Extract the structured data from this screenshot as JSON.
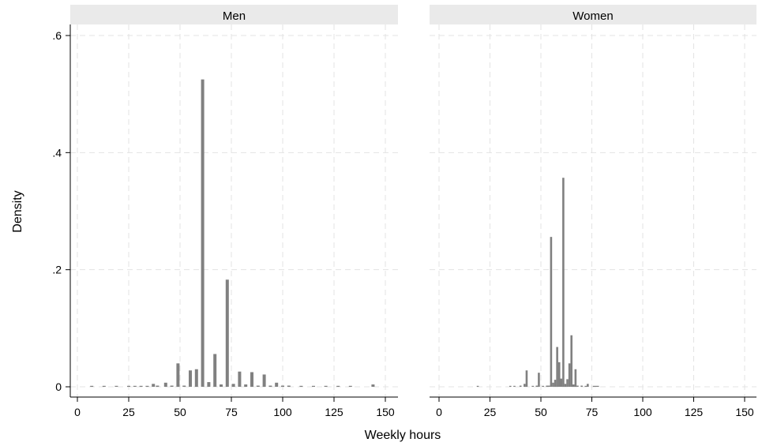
{
  "chart_data": {
    "type": "bar",
    "xlabel": "Weekly hours",
    "ylabel": "Density",
    "xlim": [
      0,
      150
    ],
    "ylim": [
      0,
      0.6
    ],
    "x_ticks": [
      0,
      25,
      50,
      75,
      100,
      125,
      150
    ],
    "x_tick_labels": [
      "0",
      "25",
      "50",
      "75",
      "100",
      "125",
      "150"
    ],
    "y_ticks": [
      0,
      0.2,
      0.4,
      0.6
    ],
    "y_tick_labels": [
      "0",
      ".2",
      ".4",
      ".6"
    ],
    "grid": true,
    "colors": {
      "bar": "#808080",
      "strip": "#eaeaea",
      "grid": "#e3e3e3",
      "axis": "#000000"
    },
    "panels": [
      {
        "title": "Men",
        "bars": [
          {
            "x": 7,
            "y": 0.001
          },
          {
            "x": 13,
            "y": 0.001
          },
          {
            "x": 19,
            "y": 0.001
          },
          {
            "x": 25,
            "y": 0.001
          },
          {
            "x": 28,
            "y": 0.001
          },
          {
            "x": 31,
            "y": 0.001
          },
          {
            "x": 34,
            "y": 0.001
          },
          {
            "x": 37,
            "y": 0.005
          },
          {
            "x": 39,
            "y": 0.002
          },
          {
            "x": 43,
            "y": 0.007
          },
          {
            "x": 46,
            "y": 0.002
          },
          {
            "x": 49,
            "y": 0.04
          },
          {
            "x": 52,
            "y": 0.002
          },
          {
            "x": 55,
            "y": 0.028
          },
          {
            "x": 58,
            "y": 0.03
          },
          {
            "x": 61,
            "y": 0.525
          },
          {
            "x": 64,
            "y": 0.008
          },
          {
            "x": 67,
            "y": 0.056
          },
          {
            "x": 70,
            "y": 0.004
          },
          {
            "x": 73,
            "y": 0.183
          },
          {
            "x": 76,
            "y": 0.005
          },
          {
            "x": 79,
            "y": 0.026
          },
          {
            "x": 82,
            "y": 0.004
          },
          {
            "x": 85,
            "y": 0.025
          },
          {
            "x": 88,
            "y": 0.002
          },
          {
            "x": 91,
            "y": 0.021
          },
          {
            "x": 94,
            "y": 0.002
          },
          {
            "x": 97,
            "y": 0.007
          },
          {
            "x": 100,
            "y": 0.002
          },
          {
            "x": 103,
            "y": 0.002
          },
          {
            "x": 109,
            "y": 0.001
          },
          {
            "x": 115,
            "y": 0.001
          },
          {
            "x": 121,
            "y": 0.001
          },
          {
            "x": 127,
            "y": 0.001
          },
          {
            "x": 133,
            "y": 0.001
          },
          {
            "x": 144,
            "y": 0.004
          }
        ]
      },
      {
        "title": "Women",
        "bars": [
          {
            "x": 19,
            "y": 0.001
          },
          {
            "x": 35,
            "y": 0.001
          },
          {
            "x": 37,
            "y": 0.001
          },
          {
            "x": 40,
            "y": 0.002
          },
          {
            "x": 42,
            "y": 0.005
          },
          {
            "x": 43,
            "y": 0.028
          },
          {
            "x": 46,
            "y": 0.001
          },
          {
            "x": 48,
            "y": 0.002
          },
          {
            "x": 49,
            "y": 0.024
          },
          {
            "x": 51,
            "y": 0.001
          },
          {
            "x": 53,
            "y": 0.002
          },
          {
            "x": 54,
            "y": 0.002
          },
          {
            "x": 55,
            "y": 0.256
          },
          {
            "x": 56,
            "y": 0.007
          },
          {
            "x": 57,
            "y": 0.012
          },
          {
            "x": 58,
            "y": 0.068
          },
          {
            "x": 59,
            "y": 0.042
          },
          {
            "x": 60,
            "y": 0.014
          },
          {
            "x": 61,
            "y": 0.357
          },
          {
            "x": 62,
            "y": 0.005
          },
          {
            "x": 63,
            "y": 0.013
          },
          {
            "x": 64,
            "y": 0.04
          },
          {
            "x": 65,
            "y": 0.088
          },
          {
            "x": 66,
            "y": 0.004
          },
          {
            "x": 67,
            "y": 0.03
          },
          {
            "x": 68,
            "y": 0.002
          },
          {
            "x": 70,
            "y": 0.002
          },
          {
            "x": 72,
            "y": 0.001
          },
          {
            "x": 73,
            "y": 0.005
          },
          {
            "x": 76,
            "y": 0.001
          },
          {
            "x": 77,
            "y": 0.001
          },
          {
            "x": 78,
            "y": 0.001
          }
        ]
      }
    ]
  }
}
